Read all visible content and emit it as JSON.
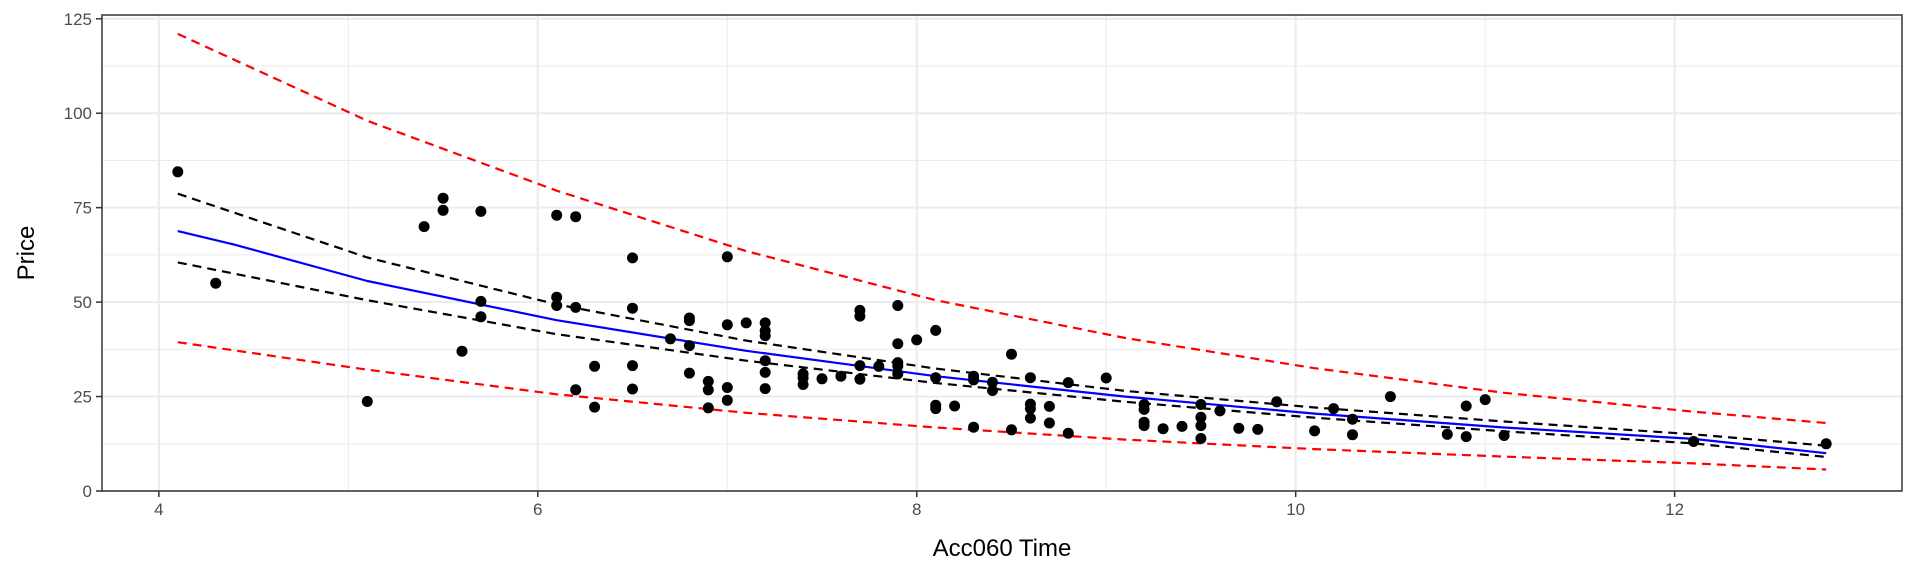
{
  "chart_data": {
    "type": "scatter",
    "title": "",
    "xlabel": "Acc060 Time",
    "ylabel": "Price",
    "xlim": [
      3.7,
      13.2
    ],
    "ylim": [
      0,
      126
    ],
    "x_ticks": [
      4,
      6,
      8,
      10,
      12
    ],
    "x_tick_labels": [
      "4",
      "6",
      "8",
      "10",
      "12"
    ],
    "y_ticks": [
      0,
      25,
      50,
      75,
      100,
      125
    ],
    "y_tick_labels": [
      "0",
      "25",
      "50",
      "75",
      "100",
      "125"
    ],
    "grid": true,
    "legend": "none",
    "colors": {
      "points": "#000000",
      "fit": "#0000ff",
      "confidence_band": "#000000",
      "prediction_band": "#ff0000",
      "grid": "#ebebeb",
      "panel_border": "#333333"
    },
    "points": [
      [
        4.1,
        84.5
      ],
      [
        4.3,
        55
      ],
      [
        5.1,
        23.7
      ],
      [
        5.4,
        70
      ],
      [
        5.5,
        77.5
      ],
      [
        5.5,
        74.3
      ],
      [
        5.6,
        37
      ],
      [
        5.7,
        74
      ],
      [
        5.7,
        50.2
      ],
      [
        5.7,
        46.1
      ],
      [
        6.1,
        73
      ],
      [
        6.1,
        51.3
      ],
      [
        6.1,
        49.1
      ],
      [
        6.2,
        72.6
      ],
      [
        6.2,
        48.6
      ],
      [
        6.2,
        26.8
      ],
      [
        6.3,
        33
      ],
      [
        6.3,
        22.2
      ],
      [
        6.5,
        61.7
      ],
      [
        6.5,
        48.4
      ],
      [
        6.5,
        33.2
      ],
      [
        6.5,
        27
      ],
      [
        6.7,
        40.3
      ],
      [
        6.8,
        45.8
      ],
      [
        6.8,
        45.1
      ],
      [
        6.8,
        38.5
      ],
      [
        6.8,
        31.2
      ],
      [
        6.9,
        29
      ],
      [
        6.9,
        26.8
      ],
      [
        6.9,
        22
      ],
      [
        7,
        62
      ],
      [
        7,
        44
      ],
      [
        7,
        27.4
      ],
      [
        7,
        24
      ],
      [
        7.1,
        44.5
      ],
      [
        7.2,
        44.5
      ],
      [
        7.2,
        42.4
      ],
      [
        7.2,
        41.1
      ],
      [
        7.2,
        34.5
      ],
      [
        7.2,
        31.4
      ],
      [
        7.2,
        27.1
      ],
      [
        7.4,
        31
      ],
      [
        7.4,
        29.9
      ],
      [
        7.4,
        28.2
      ],
      [
        7.5,
        29.7
      ],
      [
        7.6,
        30.4
      ],
      [
        7.7,
        47.8
      ],
      [
        7.7,
        46.3
      ],
      [
        7.7,
        33.2
      ],
      [
        7.7,
        29.6
      ],
      [
        7.8,
        33
      ],
      [
        7.9,
        49.1
      ],
      [
        7.9,
        39
      ],
      [
        7.9,
        34
      ],
      [
        7.9,
        33.1
      ],
      [
        7.9,
        31
      ],
      [
        8,
        40
      ],
      [
        8.1,
        42.5
      ],
      [
        8.1,
        30
      ],
      [
        8.1,
        22.7
      ],
      [
        8.1,
        21.8
      ],
      [
        8.2,
        22.5
      ],
      [
        8.3,
        30.4
      ],
      [
        8.3,
        29.4
      ],
      [
        8.3,
        16.9
      ],
      [
        8.4,
        28.8
      ],
      [
        8.4,
        26.6
      ],
      [
        8.5,
        36.2
      ],
      [
        8.5,
        16.2
      ],
      [
        8.6,
        30
      ],
      [
        8.6,
        23
      ],
      [
        8.6,
        21.8
      ],
      [
        8.6,
        19.3
      ],
      [
        8.7,
        22.4
      ],
      [
        8.7,
        18
      ],
      [
        8.8,
        28.7
      ],
      [
        8.8,
        15.3
      ],
      [
        9,
        29.9
      ],
      [
        9.2,
        22.9
      ],
      [
        9.2,
        21.6
      ],
      [
        9.2,
        18.2
      ],
      [
        9.2,
        17.3
      ],
      [
        9.3,
        16.5
      ],
      [
        9.4,
        17.1
      ],
      [
        9.5,
        22.9
      ],
      [
        9.5,
        19.5
      ],
      [
        9.5,
        17.3
      ],
      [
        9.5,
        13.9
      ],
      [
        9.6,
        21.2
      ],
      [
        9.7,
        16.6
      ],
      [
        9.8,
        16.3
      ],
      [
        9.9,
        23.6
      ],
      [
        10.1,
        15.9
      ],
      [
        10.2,
        21.8
      ],
      [
        10.3,
        19
      ],
      [
        10.3,
        14.9
      ],
      [
        10.5,
        25
      ],
      [
        10.8,
        15
      ],
      [
        10.9,
        22.5
      ],
      [
        10.9,
        14.4
      ],
      [
        11,
        24.2
      ],
      [
        11.1,
        14.7
      ],
      [
        12.1,
        13.1
      ],
      [
        12.8,
        12.5
      ]
    ],
    "lines": [
      {
        "role": "fit",
        "style": "solid",
        "x": [
          4.1,
          4.4,
          5.1,
          6.1,
          7.1,
          8.1,
          9.1,
          10.1,
          11.1,
          12.1,
          12.8
        ],
        "y": [
          68.8,
          65.2,
          55.6,
          45.2,
          37.1,
          30.4,
          25,
          20.5,
          16.8,
          13.8,
          10
        ]
      },
      {
        "role": "confidence-upper",
        "style": "dashed",
        "x": [
          4.1,
          5.1,
          6.1,
          7.1,
          8.1,
          9.1,
          10.1,
          11.1,
          12.1,
          12.8
        ],
        "y": [
          78.7,
          61.8,
          49.4,
          39.8,
          32.4,
          26.5,
          22.1,
          18.4,
          15,
          12
        ]
      },
      {
        "role": "confidence-lower",
        "style": "dashed",
        "x": [
          4.1,
          5.1,
          6.1,
          7.1,
          8.1,
          9.1,
          10.1,
          11.1,
          12.1,
          12.8
        ],
        "y": [
          60.5,
          50.5,
          41.5,
          34.5,
          28.6,
          23.6,
          19.4,
          15.8,
          12.6,
          9
        ]
      },
      {
        "role": "prediction-upper",
        "style": "dashed",
        "x": [
          4.1,
          5.1,
          6.1,
          7.1,
          8.1,
          9.1,
          10.1,
          11.1,
          12.1,
          12.8
        ],
        "y": [
          121,
          98,
          79.5,
          63.5,
          50.5,
          40.5,
          32.5,
          26,
          21,
          18
        ]
      },
      {
        "role": "prediction-lower",
        "style": "dashed",
        "x": [
          4.1,
          5.1,
          6.1,
          7.1,
          8.1,
          9.1,
          10.1,
          11.1,
          12.1,
          12.8
        ],
        "y": [
          39.4,
          32.1,
          25.6,
          20.7,
          16.8,
          13.6,
          11.1,
          9.1,
          7.3,
          5.7
        ]
      }
    ]
  }
}
